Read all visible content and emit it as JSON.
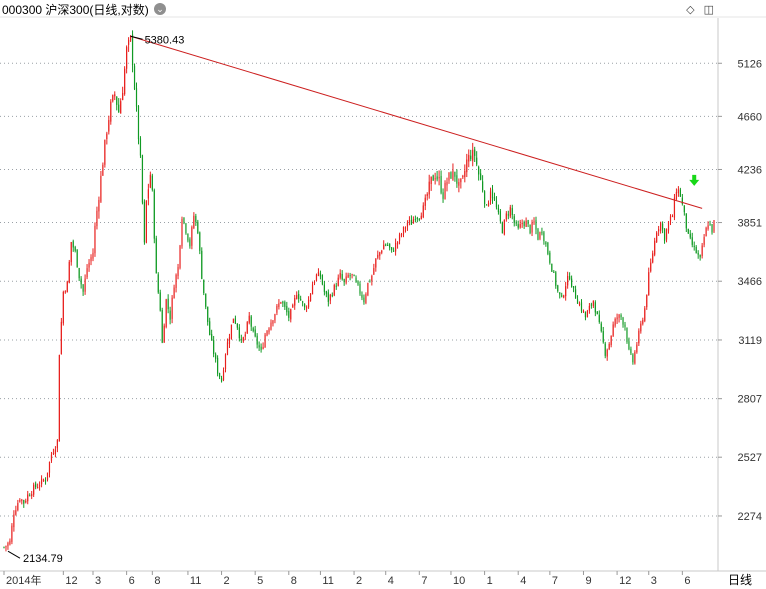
{
  "header": {
    "title": "000300 沪深300(日线,对数)",
    "menu_icon": "chevron-down-icon",
    "window_icons": [
      "diamond-icon",
      "restore-icon"
    ]
  },
  "period_label": "日线",
  "colors": {
    "up": "#e8201e",
    "down": "#119a24",
    "trendline": "#cc1f1f",
    "grid": "#9aa0a6",
    "signal_arrow": "#18d818"
  },
  "chart_data": {
    "type": "candlestick",
    "title": "000300 沪深300(日线,对数)",
    "scale": "log",
    "grid": true,
    "ylim": [
      2060,
      5560
    ],
    "y_ticks": [
      5126,
      4660,
      4236,
      3851,
      3466,
      3119,
      2807,
      2527,
      2274
    ],
    "x_tick_labels": [
      "2014年",
      "12",
      "3",
      "6",
      "8",
      "11",
      "2",
      "5",
      "8",
      "11",
      "2",
      "4",
      "7",
      "10",
      "1",
      "4",
      "7",
      "9",
      "12",
      "3",
      "6"
    ],
    "x_tick_positions": [
      0,
      30,
      45,
      62,
      75,
      93,
      110,
      127,
      144,
      160,
      177,
      193,
      210,
      226,
      243,
      260,
      276,
      293,
      310,
      326,
      343
    ],
    "bars_total": 360,
    "max_label": "5380.43",
    "min_label": "2134.79",
    "max_point": {
      "bar": 64,
      "value": 5380.43
    },
    "min_point": {
      "bar": 1,
      "value": 2134.79
    },
    "trendline": [
      {
        "bar": 64,
        "value": 5380.43
      },
      {
        "bar": 353,
        "value": 3950
      }
    ],
    "signal_arrow": {
      "bar": 349,
      "value": 4150,
      "direction": "down"
    },
    "path": [
      [
        0,
        2150
      ],
      [
        3,
        2170
      ],
      [
        5,
        2290
      ],
      [
        8,
        2350
      ],
      [
        10,
        2330
      ],
      [
        12,
        2360
      ],
      [
        15,
        2390
      ],
      [
        18,
        2410
      ],
      [
        21,
        2430
      ],
      [
        24,
        2540
      ],
      [
        27,
        2600
      ],
      [
        28,
        3050
      ],
      [
        30,
        3400
      ],
      [
        32,
        3450
      ],
      [
        34,
        3720
      ],
      [
        36,
        3650
      ],
      [
        38,
        3500
      ],
      [
        40,
        3400
      ],
      [
        42,
        3550
      ],
      [
        45,
        3650
      ],
      [
        46,
        3820
      ],
      [
        48,
        4050
      ],
      [
        50,
        4300
      ],
      [
        52,
        4550
      ],
      [
        54,
        4750
      ],
      [
        56,
        4850
      ],
      [
        58,
        4700
      ],
      [
        60,
        4900
      ],
      [
        62,
        5250
      ],
      [
        64,
        5350
      ],
      [
        65,
        5150
      ],
      [
        67,
        4700
      ],
      [
        69,
        4300
      ],
      [
        71,
        3700
      ],
      [
        72,
        4000
      ],
      [
        74,
        4200
      ],
      [
        75,
        4050
      ],
      [
        77,
        3500
      ],
      [
        79,
        3300
      ],
      [
        80,
        3100
      ],
      [
        82,
        3350
      ],
      [
        84,
        3250
      ],
      [
        86,
        3450
      ],
      [
        88,
        3550
      ],
      [
        90,
        3900
      ],
      [
        92,
        3800
      ],
      [
        94,
        3700
      ],
      [
        96,
        3900
      ],
      [
        98,
        3800
      ],
      [
        100,
        3500
      ],
      [
        102,
        3300
      ],
      [
        104,
        3150
      ],
      [
        106,
        3050
      ],
      [
        108,
        2950
      ],
      [
        110,
        2900
      ],
      [
        112,
        3050
      ],
      [
        114,
        3150
      ],
      [
        116,
        3250
      ],
      [
        118,
        3200
      ],
      [
        120,
        3100
      ],
      [
        122,
        3150
      ],
      [
        124,
        3250
      ],
      [
        126,
        3150
      ],
      [
        128,
        3100
      ],
      [
        130,
        3050
      ],
      [
        132,
        3150
      ],
      [
        134,
        3200
      ],
      [
        136,
        3250
      ],
      [
        138,
        3300
      ],
      [
        140,
        3350
      ],
      [
        142,
        3300
      ],
      [
        144,
        3250
      ],
      [
        146,
        3300
      ],
      [
        148,
        3400
      ],
      [
        150,
        3350
      ],
      [
        152,
        3300
      ],
      [
        154,
        3350
      ],
      [
        156,
        3450
      ],
      [
        158,
        3500
      ],
      [
        160,
        3500
      ],
      [
        162,
        3400
      ],
      [
        164,
        3350
      ],
      [
        166,
        3400
      ],
      [
        168,
        3450
      ],
      [
        170,
        3500
      ],
      [
        172,
        3450
      ],
      [
        174,
        3500
      ],
      [
        176,
        3500
      ],
      [
        178,
        3450
      ],
      [
        180,
        3400
      ],
      [
        182,
        3350
      ],
      [
        184,
        3450
      ],
      [
        186,
        3500
      ],
      [
        188,
        3600
      ],
      [
        190,
        3650
      ],
      [
        192,
        3700
      ],
      [
        194,
        3700
      ],
      [
        196,
        3650
      ],
      [
        198,
        3700
      ],
      [
        200,
        3750
      ],
      [
        202,
        3800
      ],
      [
        204,
        3850
      ],
      [
        206,
        3850
      ],
      [
        208,
        3900
      ],
      [
        210,
        3900
      ],
      [
        212,
        3950
      ],
      [
        214,
        4050
      ],
      [
        216,
        4150
      ],
      [
        218,
        4200
      ],
      [
        220,
        4150
      ],
      [
        222,
        4050
      ],
      [
        224,
        4150
      ],
      [
        226,
        4200
      ],
      [
        228,
        4200
      ],
      [
        230,
        4100
      ],
      [
        232,
        4150
      ],
      [
        234,
        4300
      ],
      [
        236,
        4350
      ],
      [
        238,
        4350
      ],
      [
        240,
        4200
      ],
      [
        242,
        4100
      ],
      [
        244,
        3950
      ],
      [
        246,
        4100
      ],
      [
        248,
        4000
      ],
      [
        250,
        3900
      ],
      [
        252,
        3800
      ],
      [
        254,
        3900
      ],
      [
        256,
        3950
      ],
      [
        258,
        3850
      ],
      [
        260,
        3800
      ],
      [
        262,
        3850
      ],
      [
        264,
        3850
      ],
      [
        266,
        3800
      ],
      [
        268,
        3850
      ],
      [
        270,
        3750
      ],
      [
        272,
        3800
      ],
      [
        274,
        3700
      ],
      [
        276,
        3600
      ],
      [
        278,
        3500
      ],
      [
        280,
        3400
      ],
      [
        282,
        3350
      ],
      [
        284,
        3450
      ],
      [
        286,
        3500
      ],
      [
        288,
        3400
      ],
      [
        290,
        3350
      ],
      [
        292,
        3300
      ],
      [
        294,
        3250
      ],
      [
        296,
        3300
      ],
      [
        298,
        3350
      ],
      [
        300,
        3250
      ],
      [
        302,
        3150
      ],
      [
        304,
        3050
      ],
      [
        306,
        3100
      ],
      [
        308,
        3200
      ],
      [
        310,
        3250
      ],
      [
        312,
        3250
      ],
      [
        314,
        3200
      ],
      [
        316,
        3050
      ],
      [
        318,
        3000
      ],
      [
        320,
        3100
      ],
      [
        322,
        3200
      ],
      [
        324,
        3300
      ],
      [
        326,
        3500
      ],
      [
        328,
        3650
      ],
      [
        330,
        3800
      ],
      [
        332,
        3850
      ],
      [
        334,
        3750
      ],
      [
        336,
        3850
      ],
      [
        338,
        3900
      ],
      [
        340,
        4100
      ],
      [
        342,
        4050
      ],
      [
        344,
        3900
      ],
      [
        346,
        3750
      ],
      [
        348,
        3700
      ],
      [
        350,
        3650
      ],
      [
        352,
        3600
      ],
      [
        354,
        3750
      ],
      [
        356,
        3850
      ],
      [
        358,
        3800
      ],
      [
        359,
        3850
      ]
    ]
  }
}
